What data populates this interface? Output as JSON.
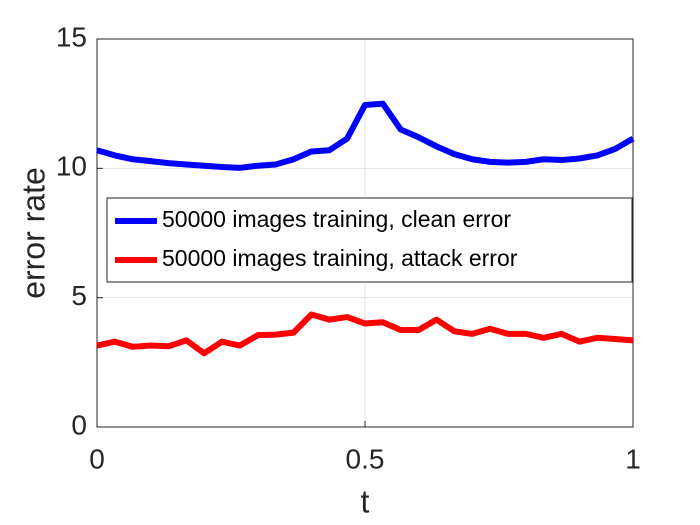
{
  "chart_data": {
    "type": "line",
    "x_label": "t",
    "y_label": "error rate",
    "x": [
      0,
      0.0333,
      0.0667,
      0.1,
      0.1333,
      0.1667,
      0.2,
      0.2333,
      0.2667,
      0.3,
      0.3333,
      0.3667,
      0.4,
      0.4333,
      0.4667,
      0.5,
      0.5333,
      0.5667,
      0.6,
      0.6333,
      0.6667,
      0.7,
      0.7333,
      0.7667,
      0.8,
      0.8333,
      0.8667,
      0.9,
      0.9333,
      0.9667,
      1
    ],
    "series": [
      {
        "name": "50000 images training, clean error",
        "color": "#0000ff",
        "values": [
          10.7,
          10.5,
          10.35,
          10.28,
          10.2,
          10.15,
          10.1,
          10.05,
          10.02,
          10.1,
          10.15,
          10.35,
          10.65,
          10.7,
          11.15,
          12.45,
          12.5,
          11.5,
          11.2,
          10.85,
          10.55,
          10.35,
          10.25,
          10.22,
          10.25,
          10.35,
          10.32,
          10.38,
          10.5,
          10.75,
          11.15
        ]
      },
      {
        "name": "50000 images training, attack error",
        "color": "#ff0000",
        "values": [
          3.15,
          3.3,
          3.1,
          3.15,
          3.12,
          3.35,
          2.85,
          3.3,
          3.15,
          3.55,
          3.57,
          3.65,
          4.35,
          4.15,
          4.25,
          4.0,
          4.05,
          3.75,
          3.75,
          4.15,
          3.7,
          3.6,
          3.8,
          3.6,
          3.6,
          3.45,
          3.6,
          3.3,
          3.45,
          3.4,
          3.35
        ]
      }
    ],
    "xlim": [
      0,
      1
    ],
    "xticks": [
      0,
      0.5,
      1
    ],
    "ylim": [
      0,
      15
    ],
    "yticks": [
      0,
      5,
      10,
      15
    ],
    "grid": true,
    "legend_location": "west"
  }
}
